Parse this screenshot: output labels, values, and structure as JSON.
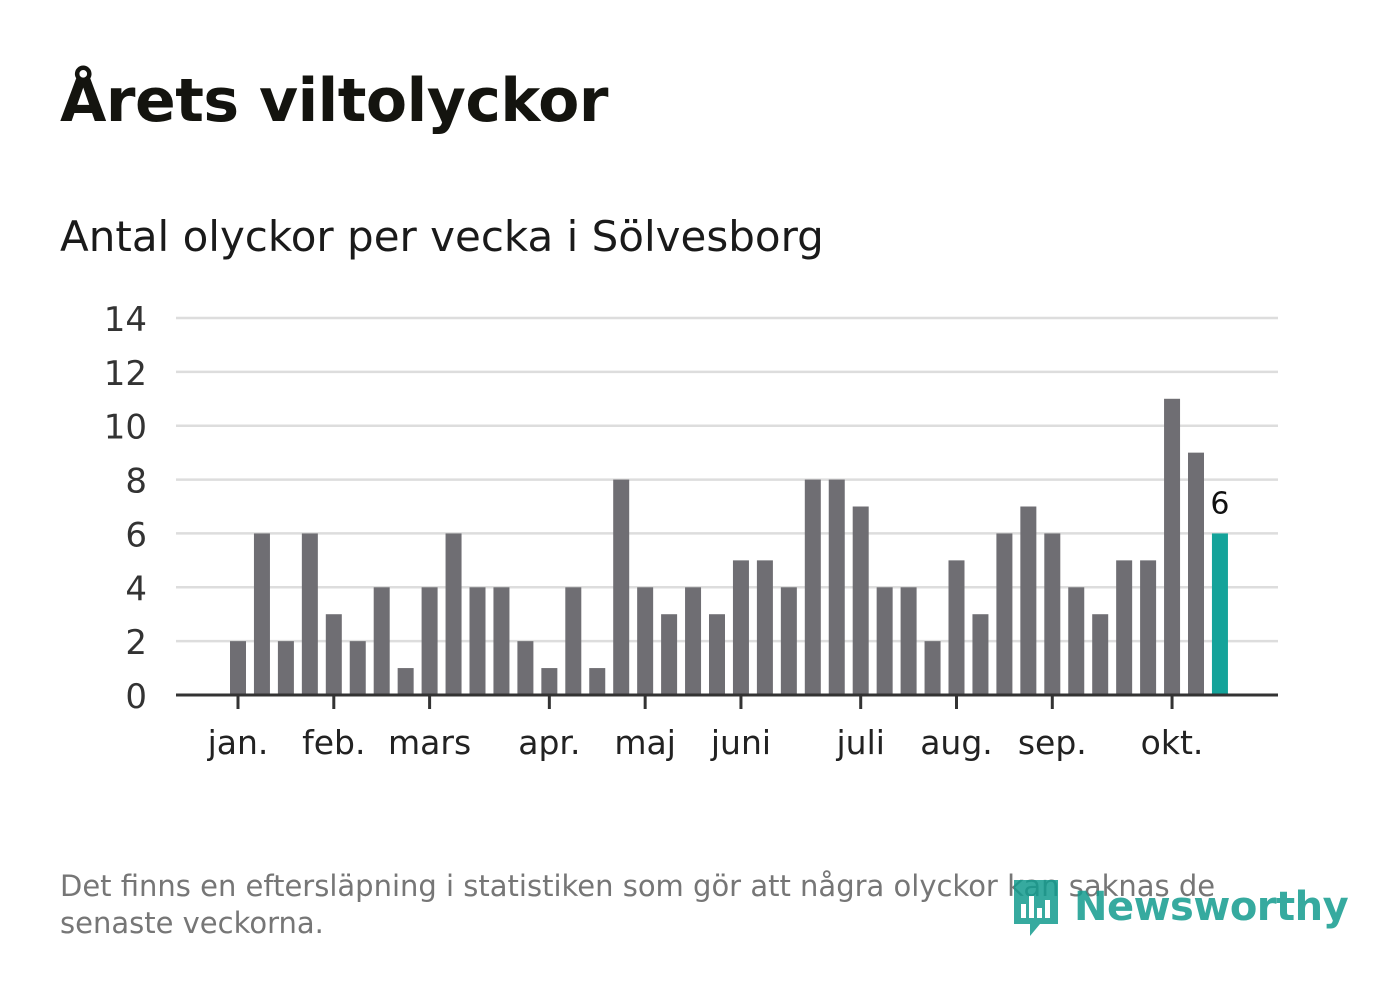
{
  "title": "Årets viltolyckor",
  "subtitle": "Antal olyckor per vecka i Sölvesborg",
  "note": "Det finns en eftersläpning i statistiken som gör att några olyckor kan saknas de senaste veckorna.",
  "logo": {
    "text": "Newsworthy",
    "icon": "newsworthy-logo-icon"
  },
  "colors": {
    "bar": "#6f6e73",
    "highlight": "#14a39a",
    "grid": "#dddddd",
    "axis": "#333333",
    "logo": "#139c8f"
  },
  "chart_data": {
    "type": "bar",
    "title": "Antal olyckor per vecka i Sölvesborg",
    "xlabel": "",
    "ylabel": "",
    "ylim": [
      0,
      14
    ],
    "yticks": [
      0,
      2,
      4,
      6,
      8,
      10,
      12,
      14
    ],
    "grid": true,
    "weeks": [
      1,
      2,
      3,
      4,
      5,
      6,
      7,
      8,
      9,
      10,
      11,
      12,
      13,
      14,
      15,
      16,
      17,
      18,
      19,
      20,
      21,
      22,
      23,
      24,
      25,
      26,
      27,
      28,
      29,
      30,
      31,
      32,
      33,
      34,
      35,
      36,
      37,
      38,
      39,
      40,
      41,
      42
    ],
    "values": [
      2,
      6,
      2,
      6,
      3,
      2,
      4,
      1,
      4,
      6,
      4,
      4,
      2,
      1,
      4,
      1,
      8,
      4,
      3,
      4,
      3,
      5,
      5,
      4,
      8,
      8,
      7,
      4,
      4,
      2,
      5,
      3,
      6,
      7,
      6,
      4,
      3,
      5,
      5,
      11,
      9,
      6
    ],
    "highlight_index": 41,
    "highlight_label": "6",
    "month_ticks": [
      {
        "label": "jan.",
        "week": 1
      },
      {
        "label": "feb.",
        "week": 5
      },
      {
        "label": "mars",
        "week": 9
      },
      {
        "label": "apr.",
        "week": 14
      },
      {
        "label": "maj",
        "week": 18
      },
      {
        "label": "juni",
        "week": 22
      },
      {
        "label": "juli",
        "week": 27
      },
      {
        "label": "aug.",
        "week": 31
      },
      {
        "label": "sep.",
        "week": 35
      },
      {
        "label": "okt.",
        "week": 40
      }
    ]
  }
}
